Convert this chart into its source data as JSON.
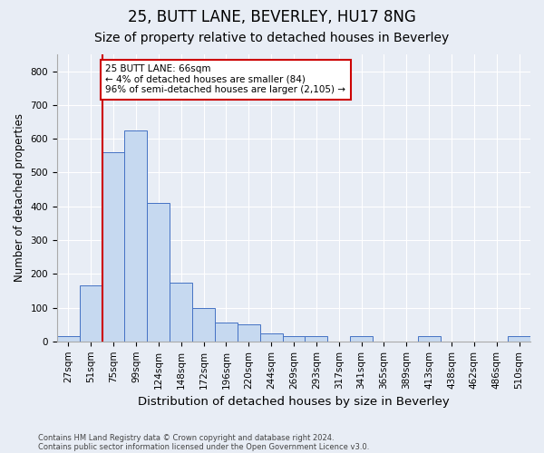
{
  "title1": "25, BUTT LANE, BEVERLEY, HU17 8NG",
  "title2": "Size of property relative to detached houses in Beverley",
  "xlabel": "Distribution of detached houses by size in Beverley",
  "ylabel": "Number of detached properties",
  "footnote1": "Contains HM Land Registry data © Crown copyright and database right 2024.",
  "footnote2": "Contains public sector information licensed under the Open Government Licence v3.0.",
  "annotation_line1": "25 BUTT LANE: 66sqm",
  "annotation_line2": "← 4% of detached houses are smaller (84)",
  "annotation_line3": "96% of semi-detached houses are larger (2,105) →",
  "bar_categories": [
    "27sqm",
    "51sqm",
    "75sqm",
    "99sqm",
    "124sqm",
    "148sqm",
    "172sqm",
    "196sqm",
    "220sqm",
    "244sqm",
    "269sqm",
    "293sqm",
    "317sqm",
    "341sqm",
    "365sqm",
    "389sqm",
    "413sqm",
    "438sqm",
    "462sqm",
    "486sqm",
    "510sqm"
  ],
  "bar_heights": [
    15,
    165,
    560,
    625,
    410,
    175,
    100,
    55,
    50,
    25,
    15,
    15,
    0,
    15,
    0,
    0,
    15,
    0,
    0,
    0,
    15
  ],
  "bar_width": 1.0,
  "bar_color": "#c6d9f0",
  "bar_edge_color": "#4472c4",
  "vline_color": "#cc0000",
  "vline_x": 1.5,
  "annotation_box_color": "#cc0000",
  "ylim": [
    0,
    850
  ],
  "yticks": [
    0,
    100,
    200,
    300,
    400,
    500,
    600,
    700,
    800
  ],
  "background_color": "#e8edf5",
  "plot_bg_color": "#e8edf5",
  "title1_fontsize": 12,
  "title2_fontsize": 10,
  "xlabel_fontsize": 9.5,
  "ylabel_fontsize": 8.5,
  "tick_fontsize": 7.5,
  "annot_fontsize": 7.5,
  "grid_color": "#d0d8e8",
  "figsize": [
    6.0,
    5.0
  ],
  "dpi": 100
}
